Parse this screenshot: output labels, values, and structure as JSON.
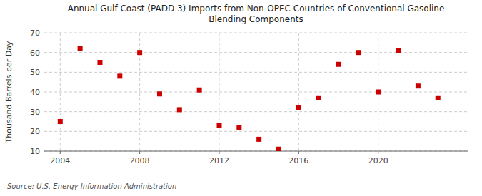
{
  "chart_data": {
    "type": "scatter",
    "title": "Annual Gulf Coast (PADD 3) Imports from Non-OPEC Countries of Conventional Gasoline\nBlending Components",
    "ylabel": "Thousand Barrels per Day",
    "annotation": "Source: U.S. Energy Information Administration",
    "x": [
      2004,
      2005,
      2006,
      2007,
      2008,
      2009,
      2010,
      2011,
      2012,
      2013,
      2014,
      2015,
      2016,
      2017,
      2018,
      2019,
      2020,
      2021,
      2022,
      2023
    ],
    "values": [
      25,
      62,
      55,
      48,
      60,
      39,
      31,
      41,
      23,
      22,
      16,
      11,
      32,
      37,
      54,
      60,
      40,
      61,
      43,
      37
    ],
    "color": "#cc0000",
    "marker": "square",
    "xlim": [
      2003.2,
      2024.5
    ],
    "xticks": [
      2004,
      2008,
      2012,
      2016,
      2020
    ],
    "ylim": [
      10,
      70
    ],
    "yticks": [
      10,
      20,
      30,
      40,
      50,
      60,
      70
    ],
    "grid": true
  }
}
